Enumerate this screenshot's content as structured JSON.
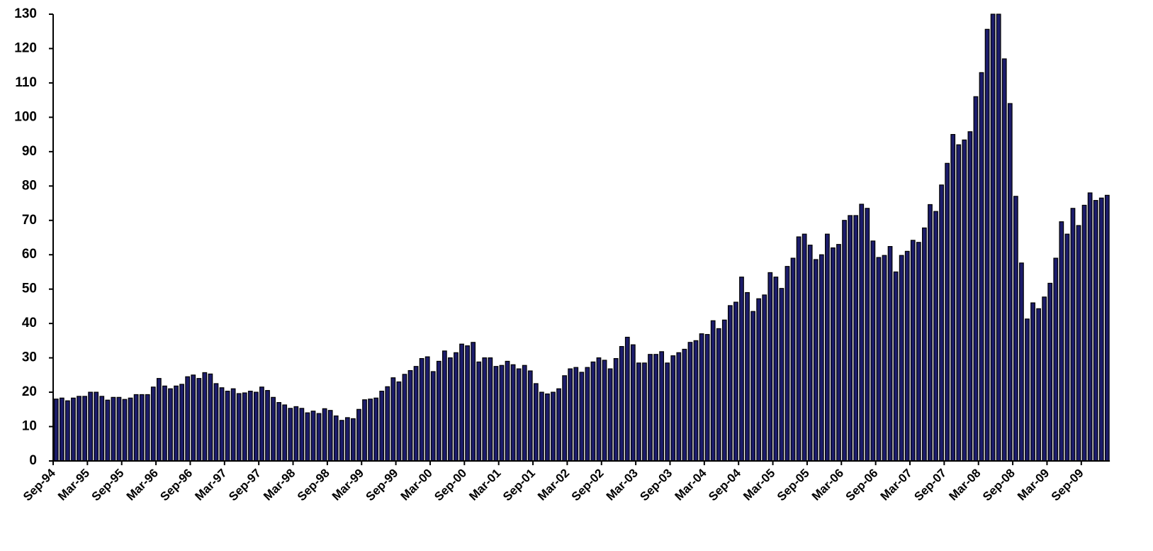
{
  "chart_data": {
    "type": "bar",
    "color": "#1c1c6b",
    "categories": [
      "Sep-94",
      null,
      null,
      null,
      null,
      null,
      "Mar-95",
      null,
      null,
      null,
      null,
      null,
      "Sep-95",
      null,
      null,
      null,
      null,
      null,
      "Mar-96",
      null,
      null,
      null,
      null,
      null,
      "Sep-96",
      null,
      null,
      null,
      null,
      null,
      "Mar-97",
      null,
      null,
      null,
      null,
      null,
      "Sep-97",
      null,
      null,
      null,
      null,
      null,
      "Mar-98",
      null,
      null,
      null,
      null,
      null,
      "Sep-98",
      null,
      null,
      null,
      null,
      null,
      "Mar-99",
      null,
      null,
      null,
      null,
      null,
      "Sep-99",
      null,
      null,
      null,
      null,
      null,
      "Mar-00",
      null,
      null,
      null,
      null,
      null,
      "Sep-00",
      null,
      null,
      null,
      null,
      null,
      "Mar-01",
      null,
      null,
      null,
      null,
      null,
      "Sep-01",
      null,
      null,
      null,
      null,
      null,
      "Mar-02",
      null,
      null,
      null,
      null,
      null,
      "Sep-02",
      null,
      null,
      null,
      null,
      null,
      "Mar-03",
      null,
      null,
      null,
      null,
      null,
      "Sep-03",
      null,
      null,
      null,
      null,
      null,
      "Mar-04",
      null,
      null,
      null,
      null,
      null,
      "Sep-04",
      null,
      null,
      null,
      null,
      null,
      "Mar-05",
      null,
      null,
      null,
      null,
      null,
      "Sep-05",
      null,
      null,
      null,
      null,
      null,
      "Mar-06",
      null,
      null,
      null,
      null,
      null,
      "Sep-06",
      null,
      null,
      null,
      null,
      null,
      "Mar-07",
      null,
      null,
      null,
      null,
      null,
      "Sep-07",
      null,
      null,
      null,
      null,
      null,
      "Mar-08",
      null,
      null,
      null,
      null,
      null,
      "Sep-08",
      null,
      null,
      null,
      null,
      null,
      "Mar-09",
      null,
      null,
      null,
      null,
      null,
      "Sep-09",
      null,
      null,
      null,
      null
    ],
    "values": [
      18,
      18.3,
      17.5,
      18.3,
      18.8,
      18.8,
      20,
      20,
      18.8,
      17.7,
      18.5,
      18.5,
      17.9,
      18.3,
      19.3,
      19.3,
      19.3,
      21.5,
      24,
      21.8,
      21,
      21.8,
      22.3,
      24.5,
      25,
      24,
      25.7,
      25.3,
      22.5,
      21.3,
      20.3,
      21,
      19.6,
      19.8,
      20.3,
      20,
      21.5,
      20.5,
      18.5,
      17,
      16.3,
      15.3,
      15.8,
      15.3,
      14,
      14.5,
      13.8,
      15.2,
      14.7,
      13.1,
      11.8,
      12.6,
      12.3,
      15,
      17.8,
      18,
      18.3,
      20.3,
      21.6,
      24.2,
      23,
      25.2,
      26.3,
      27.5,
      29.8,
      30.3,
      26,
      29,
      32,
      30,
      31.5,
      34,
      33.5,
      34.5,
      28.8,
      30,
      30,
      27.5,
      27.8,
      29,
      28,
      26.8,
      27.8,
      26.2,
      22.5,
      20,
      19.5,
      20,
      21,
      24.8,
      26.8,
      27.2,
      25.8,
      27.2,
      28.8,
      30,
      29.3,
      26.8,
      29.8,
      33.3,
      36,
      33.8,
      28.5,
      28.5,
      31,
      31,
      31.8,
      28.5,
      30.6,
      31.5,
      32.5,
      34.5,
      35,
      37,
      36.8,
      40.8,
      38.5,
      41,
      45.2,
      46.2,
      53.5,
      49,
      43.5,
      47.2,
      48.3,
      54.8,
      53.5,
      50.2,
      56.6,
      59,
      65.2,
      66,
      62.8,
      58.6,
      60,
      66,
      62,
      63,
      70,
      71.4,
      71.4,
      74.7,
      73.5,
      64,
      59.2,
      59.8,
      62.4,
      55,
      59.8,
      61,
      64.2,
      63.6,
      67.8,
      74.6,
      72.6,
      80.3,
      86.6,
      95,
      92,
      93.4,
      95.8,
      106,
      113,
      125.6,
      130,
      130,
      117,
      104,
      77,
      57.6,
      41.3,
      46,
      44.3,
      47.7,
      51.7,
      59,
      69.6,
      66,
      73.5,
      68.5,
      74.4,
      78,
      75.8,
      76.5,
      77.3
    ],
    "ylim": [
      0,
      130
    ],
    "yticks": [
      0,
      10,
      20,
      30,
      40,
      50,
      60,
      70,
      80,
      90,
      100,
      110,
      120,
      130
    ],
    "grid": false
  }
}
